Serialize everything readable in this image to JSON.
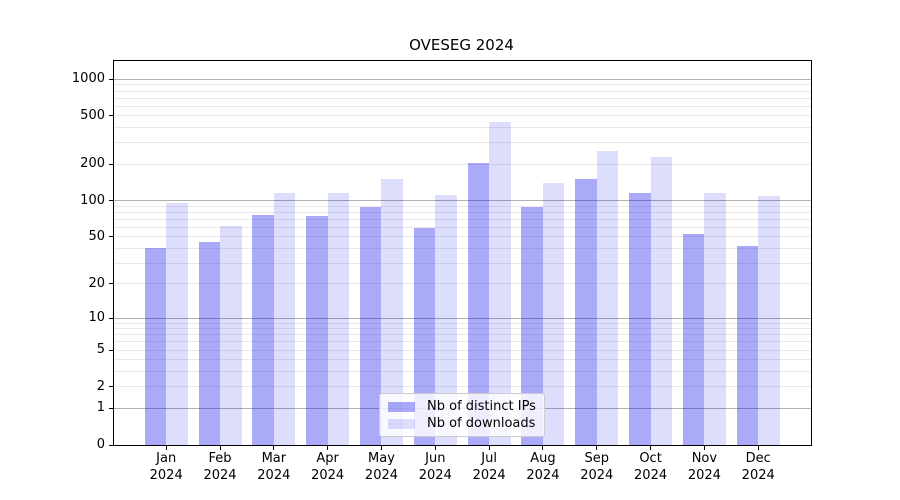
{
  "figure": {
    "title": "OVESEG 2024"
  },
  "chart_data": {
    "type": "bar",
    "title": "OVESEG 2024",
    "categories": [
      "Jan",
      "Feb",
      "Mar",
      "Apr",
      "May",
      "Jun",
      "Jul",
      "Aug",
      "Sep",
      "Oct",
      "Nov",
      "Dec"
    ],
    "year_label": "2024",
    "series": [
      {
        "name": "Nb of distinct IPs",
        "color": "rgba(20,20,235,0.36)",
        "values": [
          40,
          45,
          76,
          75,
          89,
          59,
          206,
          89,
          151,
          115,
          53,
          42
        ]
      },
      {
        "name": "Nb of downloads",
        "color": "rgba(20,20,235,0.145)",
        "values": [
          96,
          62,
          116,
          115,
          152,
          112,
          448,
          140,
          257,
          230,
          116,
          109
        ]
      }
    ],
    "yscale": "log1p",
    "ylim": [
      0,
      1100
    ],
    "ytick_values": [
      1000,
      500,
      200,
      100,
      50,
      20,
      10,
      5,
      2,
      1,
      0
    ],
    "ytick_labels": [
      "1000",
      "500",
      "200",
      "100",
      "50",
      "20",
      "10",
      "5",
      "2",
      "1",
      "0"
    ],
    "grid": {
      "enabled": true,
      "major_values": [
        1,
        10,
        100,
        1000
      ],
      "major_color": "#b0b0b0",
      "minor_color": "#e9e9e9"
    },
    "legend": {
      "position": "lower center",
      "entries": [
        "Nb of distinct IPs",
        "Nb of downloads"
      ]
    }
  }
}
